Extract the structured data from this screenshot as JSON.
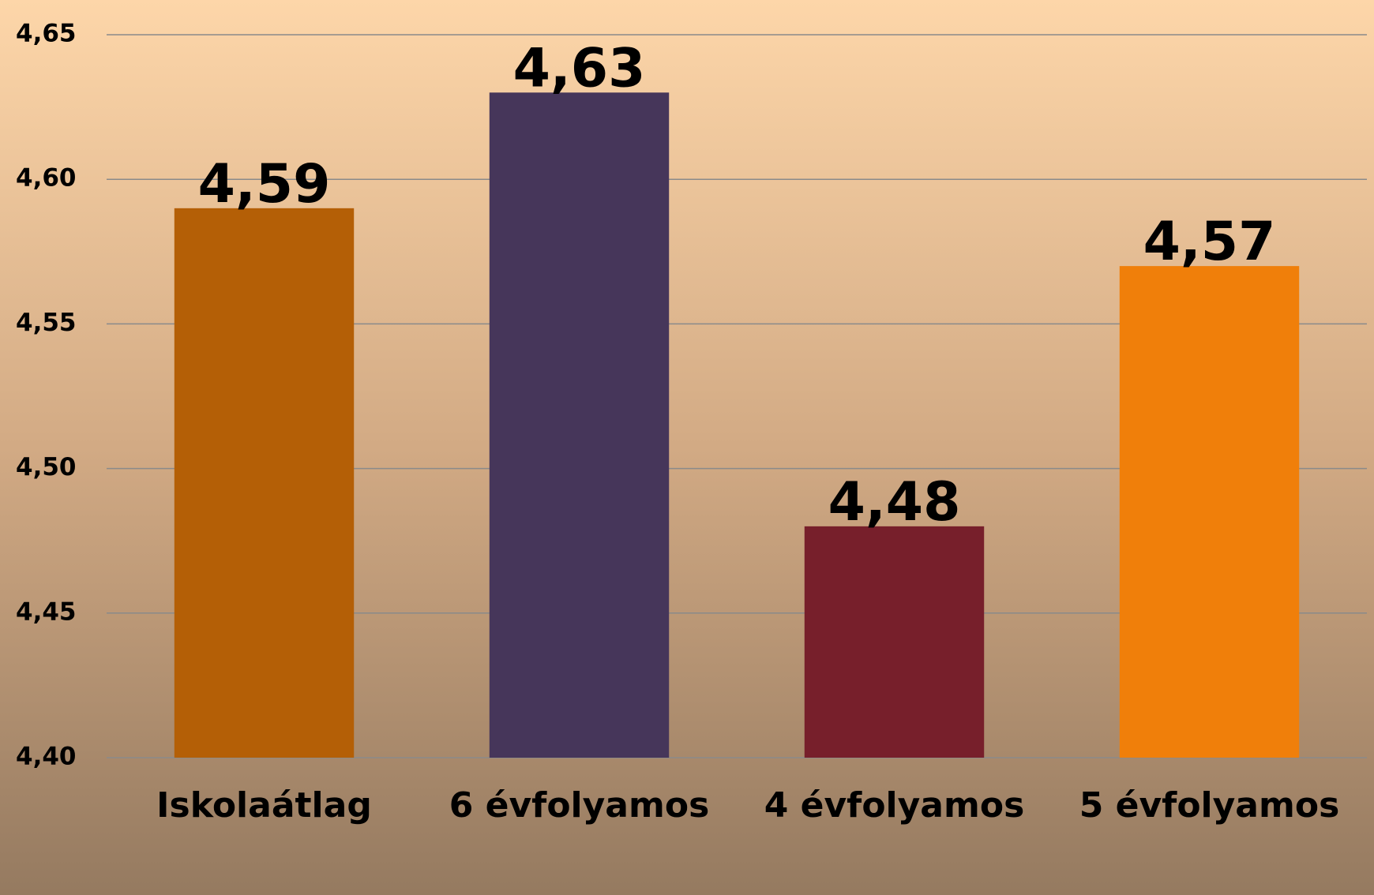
{
  "chart_data": {
    "type": "bar",
    "categories": [
      "Iskolaátlag",
      "6 évfolyamos",
      "4 évfolyamos",
      "5 évfolyamos"
    ],
    "values": [
      4.59,
      4.63,
      4.48,
      4.57
    ],
    "value_labels": [
      "4,59",
      "4,63",
      "4,48",
      "4,57"
    ],
    "colors": [
      "#b45f06",
      "#46365a",
      "#771f2b",
      "#f07f0a"
    ],
    "ylim": [
      4.4,
      4.65
    ],
    "yticks": [
      {
        "value": 4.4,
        "label": "4,40"
      },
      {
        "value": 4.45,
        "label": "4,45"
      },
      {
        "value": 4.5,
        "label": "4,50"
      },
      {
        "value": 4.55,
        "label": "4,55"
      },
      {
        "value": 4.6,
        "label": "4,60"
      },
      {
        "value": 4.65,
        "label": "4,65"
      }
    ],
    "grid": true
  }
}
